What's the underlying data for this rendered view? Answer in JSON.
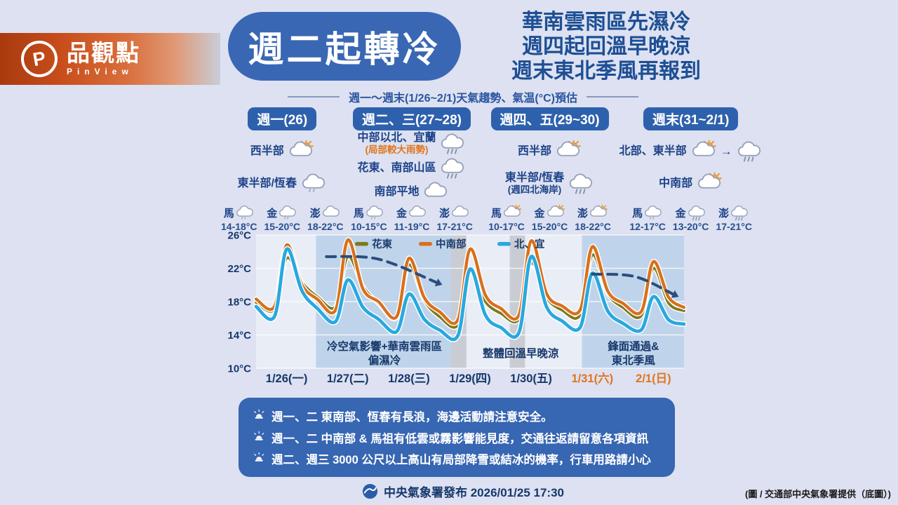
{
  "brand": {
    "name": "品觀點",
    "subname": "PinView",
    "initial": "P"
  },
  "title": "週二起轉冷",
  "headline": {
    "lines": [
      "華南雲雨區先濕冷",
      "週四起回溫早晚涼",
      "週末東北季風再報到"
    ]
  },
  "subtitle": "週一～週末(1/26~2/1)天氣趨勢、氣温(°C)預估",
  "forecast_columns": [
    {
      "header": "週一(26)",
      "rows": [
        {
          "label": "西半部",
          "icons": [
            "sun-cloud"
          ]
        },
        {
          "label": "東半部/恆春",
          "icons": [
            "cloud-drizzle"
          ]
        }
      ],
      "islands": [
        {
          "name": "馬",
          "icon": "cloud-drizzle",
          "temp": "14-18°C"
        },
        {
          "name": "金",
          "icon": "cloud-drizzle",
          "temp": "15-20°C"
        },
        {
          "name": "澎",
          "icon": "cloud",
          "temp": "18-22°C"
        }
      ]
    },
    {
      "header": "週二、三(27~28)",
      "rows": [
        {
          "label": "中部以北、宜蘭",
          "sub": "(局部較大雨勢)",
          "sub_style": "warn",
          "icons": [
            "cloud-rain"
          ]
        },
        {
          "label": "花東、南部山區",
          "icons": [
            "cloud-rain"
          ]
        },
        {
          "label": "南部平地",
          "icons": [
            "cloud"
          ]
        }
      ],
      "islands": [
        {
          "name": "馬",
          "icon": "cloud-drizzle",
          "temp": "10-15°C"
        },
        {
          "name": "金",
          "icon": "cloud",
          "temp": "11-19°C"
        },
        {
          "name": "澎",
          "icon": "cloud",
          "temp": "17-21°C"
        }
      ]
    },
    {
      "header": "週四、五(29~30)",
      "rows": [
        {
          "label": "西半部",
          "icons": [
            "sun-cloud"
          ]
        },
        {
          "label": "東半部/恆春",
          "sub": "(週四北海岸)",
          "sub_style": "normal",
          "icons": [
            "cloud-rain"
          ]
        }
      ],
      "islands": [
        {
          "name": "馬",
          "icon": "sun-cloud",
          "temp": "10-17°C"
        },
        {
          "name": "金",
          "icon": "sun-cloud",
          "temp": "15-20°C"
        },
        {
          "name": "澎",
          "icon": "sun-cloud",
          "temp": "18-22°C"
        }
      ]
    },
    {
      "header": "週末(31~2/1)",
      "rows": [
        {
          "label": "北部、東半部",
          "icons": [
            "sun-cloud",
            "arrow",
            "cloud-rain"
          ]
        },
        {
          "label": "中南部",
          "icons": [
            "sun-cloud"
          ]
        }
      ],
      "islands": [
        {
          "name": "馬",
          "icon": "cloud-drizzle",
          "temp": "12-17°C"
        },
        {
          "name": "金",
          "icon": "cloud-rain",
          "temp": "13-20°C"
        },
        {
          "name": "澎",
          "icon": "cloud-rain",
          "temp": "17-21°C"
        }
      ]
    }
  ],
  "chart_data": {
    "type": "line",
    "yticks": [
      26,
      22,
      18,
      14,
      10
    ],
    "ylim": [
      10,
      26
    ],
    "ytick_unit": "°C",
    "grid": true,
    "legend_position": "top",
    "x_days": [
      "1/26(一)",
      "1/27(二)",
      "1/28(三)",
      "1/29(四)",
      "1/30(五)",
      "1/31(六)",
      "2/1(日)"
    ],
    "weekend_indices": [
      5,
      6
    ],
    "series": [
      {
        "name": "花東",
        "color": "#7c7a1e",
        "points": [
          [
            0,
            17.9
          ],
          [
            0.3,
            17.1
          ],
          [
            0.5,
            23.2
          ],
          [
            0.75,
            20.3
          ],
          [
            1,
            18.6
          ],
          [
            1.3,
            17.4
          ],
          [
            1.5,
            23.4
          ],
          [
            1.75,
            19.8
          ],
          [
            2,
            17.8
          ],
          [
            2.3,
            16.1
          ],
          [
            2.5,
            22.4
          ],
          [
            2.75,
            18.2
          ],
          [
            3,
            16.2
          ],
          [
            3.3,
            15.2
          ],
          [
            3.5,
            21.6
          ],
          [
            3.75,
            18
          ],
          [
            4,
            16.6
          ],
          [
            4.3,
            15.9
          ],
          [
            4.5,
            22.6
          ],
          [
            4.75,
            18.5
          ],
          [
            5,
            17
          ],
          [
            5.3,
            16.4
          ],
          [
            5.5,
            23.6
          ],
          [
            5.75,
            19
          ],
          [
            6,
            17.3
          ],
          [
            6.3,
            16.3
          ],
          [
            6.5,
            22
          ],
          [
            6.75,
            17.8
          ],
          [
            7,
            16.9
          ]
        ]
      },
      {
        "name": "中南部",
        "color": "#d8701c",
        "points": [
          [
            0,
            18.3
          ],
          [
            0.3,
            17.4
          ],
          [
            0.5,
            24.8
          ],
          [
            0.75,
            20
          ],
          [
            1,
            18.3
          ],
          [
            1.3,
            17
          ],
          [
            1.5,
            25.4
          ],
          [
            1.75,
            19.5
          ],
          [
            2,
            18
          ],
          [
            2.3,
            16.2
          ],
          [
            2.5,
            23.2
          ],
          [
            2.75,
            18.5
          ],
          [
            3,
            16.8
          ],
          [
            3.3,
            15.8
          ],
          [
            3.5,
            24.3
          ],
          [
            3.75,
            18.8
          ],
          [
            4,
            17.2
          ],
          [
            4.3,
            16.4
          ],
          [
            4.5,
            25.3
          ],
          [
            4.75,
            19
          ],
          [
            5,
            17.5
          ],
          [
            5.3,
            17
          ],
          [
            5.5,
            24.6
          ],
          [
            5.75,
            19.3
          ],
          [
            6,
            17.8
          ],
          [
            6.3,
            16.8
          ],
          [
            6.5,
            22.8
          ],
          [
            6.75,
            18.5
          ],
          [
            7,
            17.3
          ]
        ]
      },
      {
        "name": "北、宜",
        "color": "#29a8e0",
        "points": [
          [
            0,
            17.4
          ],
          [
            0.3,
            16.2
          ],
          [
            0.5,
            24.3
          ],
          [
            0.75,
            19.3
          ],
          [
            1,
            17.2
          ],
          [
            1.3,
            15.6
          ],
          [
            1.5,
            20.6
          ],
          [
            1.75,
            17.3
          ],
          [
            2,
            15.9
          ],
          [
            2.3,
            14.4
          ],
          [
            2.5,
            18.9
          ],
          [
            2.75,
            15.9
          ],
          [
            3,
            14.6
          ],
          [
            3.3,
            13.9
          ],
          [
            3.5,
            21.9
          ],
          [
            3.75,
            16.4
          ],
          [
            4,
            14.9
          ],
          [
            4.3,
            14.3
          ],
          [
            4.5,
            23.4
          ],
          [
            4.75,
            17.4
          ],
          [
            5,
            15.7
          ],
          [
            5.3,
            14.9
          ],
          [
            5.5,
            21.4
          ],
          [
            5.75,
            16.9
          ],
          [
            6,
            15.4
          ],
          [
            6.3,
            14.6
          ],
          [
            6.5,
            18.6
          ],
          [
            6.75,
            15.8
          ],
          [
            7,
            15.3
          ]
        ]
      }
    ],
    "bands": [
      {
        "from": 0.98,
        "to": 3.19,
        "kind": "cold-wet",
        "color": "#bdd3e9"
      },
      {
        "from": 3.19,
        "to": 3.44,
        "kind": "transition",
        "color": "#c7cad0"
      },
      {
        "from": 4.15,
        "to": 4.4,
        "kind": "transition",
        "color": "#c7cad0"
      },
      {
        "from": 5.33,
        "to": 7,
        "kind": "front",
        "color": "#bdd3e9"
      }
    ],
    "trend_arrows": [
      {
        "points": [
          [
            1.15,
            23.4
          ],
          [
            2.0,
            23.1
          ],
          [
            2.95,
            20.3
          ]
        ]
      },
      {
        "points": [
          [
            5.5,
            21.3
          ],
          [
            6.2,
            21.0
          ],
          [
            6.82,
            18.9
          ]
        ]
      }
    ],
    "annotations": [
      {
        "lines": [
          "冷空氣影響+華南雲雨區",
          "偏濕冷"
        ],
        "day": 2.1
      },
      {
        "lines": [
          "整體回溫早晚涼"
        ],
        "day": 4.33
      },
      {
        "lines": [
          "鋒面通過&",
          "東北季風"
        ],
        "day": 6.17
      }
    ]
  },
  "notes": {
    "items": [
      {
        "text": "週一、二 東南部、恆春有長浪，海邊活動請注意安全。"
      },
      {
        "text": "週一、二 中南部 & 馬祖有低雲或霧影響能見度，交通往返請留意各項資訊"
      },
      {
        "text": "週二、週三 3000 公尺以上高山有局部降雪或結冰的機率，行車用路請小心"
      }
    ]
  },
  "footer": {
    "publisher": "中央氣象署發布 2026/01/25 17:30",
    "credit": "(圖 / 交通部中央氣象署提供（底圖）)"
  },
  "colors": {
    "background": "#dde1f1",
    "title_blue": "#3a67b4",
    "header_pill_blue": "#2e61ad",
    "navy_text": "#1c4288",
    "notes_panel_blue": "#3766b2",
    "weekend_orange": "#e0761f",
    "band_blue": "#bdd3e9",
    "band_gray": "#c7cad0"
  }
}
